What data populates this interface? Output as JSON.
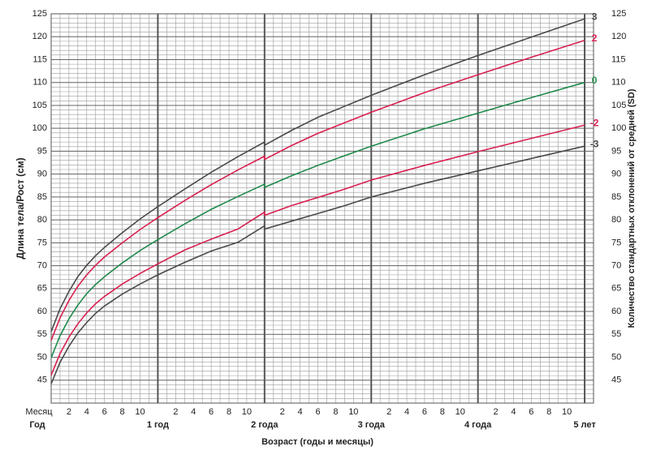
{
  "chart_data": {
    "type": "line",
    "y_title": "Длина тела/Рост (см)",
    "y2_title": "Количество стандартных отклонений от средней (SD)",
    "x_title": "Возраст (годы и месяцы)",
    "month_row_label": "Месяц",
    "year_row_label": "Год",
    "x": [
      0,
      1,
      2,
      3,
      4,
      5,
      6,
      8,
      10,
      12,
      15,
      18,
      21,
      24,
      24,
      27,
      30,
      33,
      36,
      42,
      48,
      54,
      60
    ],
    "series": [
      {
        "name": "3",
        "color": "#4a4a4a",
        "values": [
          55.6,
          60.6,
          64.4,
          67.6,
          70.1,
          72.2,
          74.0,
          77.2,
          80.2,
          82.9,
          86.7,
          90.4,
          93.8,
          97.0,
          96.3,
          99.5,
          102.4,
          104.8,
          107.2,
          111.7,
          115.9,
          119.9,
          123.9
        ]
      },
      {
        "name": "2",
        "color": "#d9204f",
        "values": [
          53.7,
          58.6,
          62.4,
          65.5,
          68.0,
          70.1,
          71.9,
          75.0,
          77.9,
          80.5,
          84.2,
          87.7,
          90.9,
          93.9,
          93.2,
          96.2,
          98.9,
          101.2,
          103.5,
          107.8,
          111.7,
          115.5,
          119.2
        ]
      },
      {
        "name": "0",
        "color": "#1f8a4c",
        "values": [
          49.9,
          54.7,
          58.4,
          61.4,
          63.9,
          65.9,
          67.6,
          70.6,
          73.3,
          75.7,
          79.1,
          82.3,
          85.1,
          87.8,
          87.1,
          89.6,
          91.9,
          94.0,
          96.1,
          99.9,
          103.3,
          106.7,
          110.0
        ]
      },
      {
        "name": "-2",
        "color": "#d9204f",
        "values": [
          46.1,
          50.8,
          54.4,
          57.3,
          59.7,
          61.7,
          63.3,
          66.0,
          68.3,
          70.4,
          73.4,
          75.8,
          78.0,
          81.7,
          81.0,
          83.1,
          84.9,
          86.7,
          88.7,
          91.9,
          94.9,
          97.8,
          100.7
        ]
      },
      {
        "name": "-3",
        "color": "#4a4a4a",
        "values": [
          44.2,
          48.9,
          52.4,
          55.3,
          57.6,
          59.6,
          61.2,
          63.8,
          66.0,
          68.0,
          70.7,
          73.2,
          75.1,
          78.7,
          78.0,
          79.7,
          81.4,
          83.1,
          85.0,
          88.0,
          90.7,
          93.4,
          96.1
        ]
      }
    ],
    "xlim": [
      0,
      61
    ],
    "ylim": [
      40,
      125
    ],
    "yticks": [
      45,
      50,
      55,
      60,
      65,
      70,
      75,
      80,
      85,
      90,
      95,
      100,
      105,
      110,
      115,
      120,
      125
    ],
    "xticks": [
      2,
      4,
      6,
      8,
      10,
      {
        "value": 14,
        "label": "2"
      },
      {
        "value": 16,
        "label": "4"
      },
      {
        "value": 18,
        "label": "6"
      },
      {
        "value": 20,
        "label": "8"
      },
      {
        "value": 22,
        "label": "10"
      },
      {
        "value": 26,
        "label": "2"
      },
      {
        "value": 28,
        "label": "4"
      },
      {
        "value": 30,
        "label": "6"
      },
      {
        "value": 32,
        "label": "8"
      },
      {
        "value": 34,
        "label": "10"
      },
      {
        "value": 38,
        "label": "2"
      },
      {
        "value": 40,
        "label": "4"
      },
      {
        "value": 42,
        "label": "6"
      },
      {
        "value": 44,
        "label": "8"
      },
      {
        "value": 46,
        "label": "10"
      },
      {
        "value": 50,
        "label": "2"
      },
      {
        "value": 52,
        "label": "4"
      },
      {
        "value": 54,
        "label": "6"
      },
      {
        "value": 56,
        "label": "8"
      },
      {
        "value": 58,
        "label": "10"
      }
    ],
    "year_ticks": [
      {
        "value": 12,
        "label": "1 год"
      },
      {
        "value": 24,
        "label": "2 года"
      },
      {
        "value": 36,
        "label": "3 года"
      },
      {
        "value": 48,
        "label": "4 года"
      },
      {
        "value": 60,
        "label": "5 лет"
      }
    ],
    "minor_grid": {
      "x": 1,
      "y": 1
    },
    "grid": true
  }
}
